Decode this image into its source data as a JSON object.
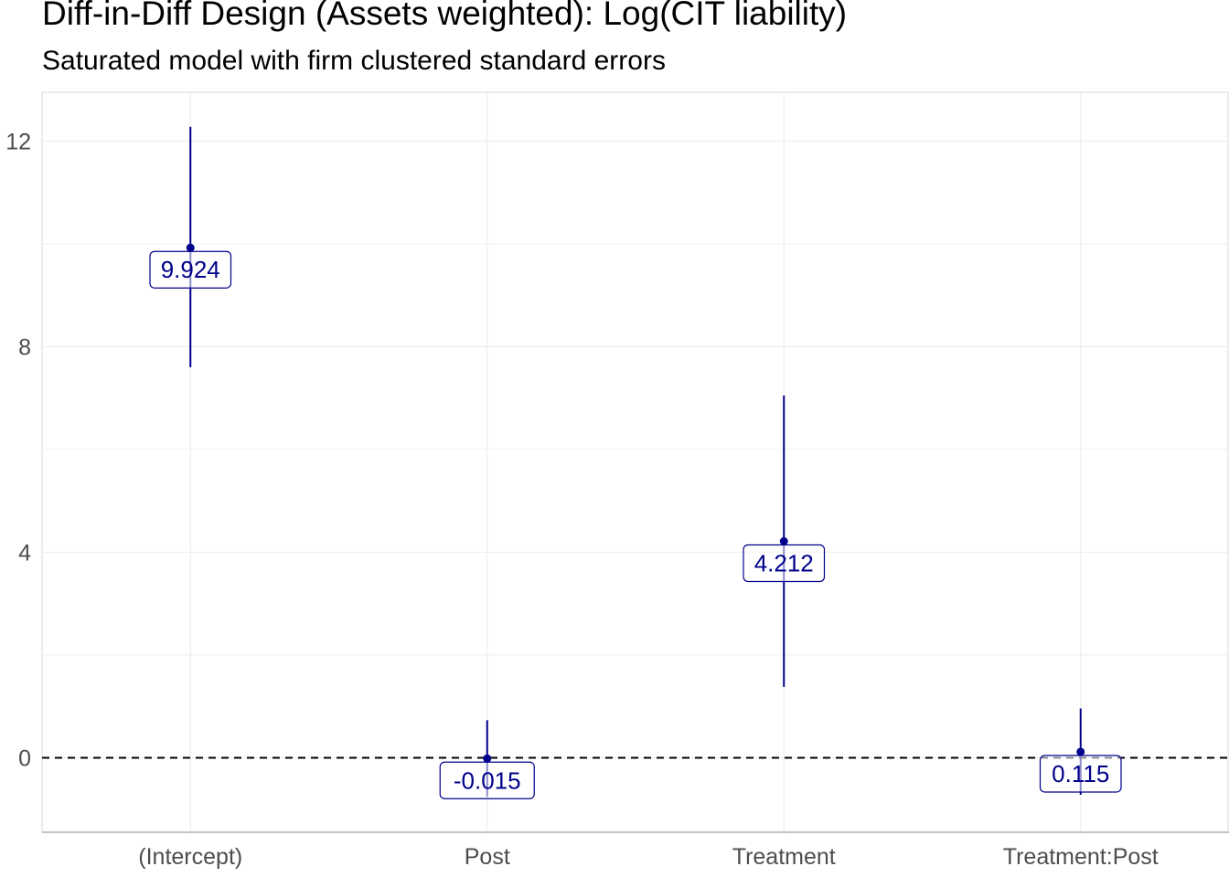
{
  "chart_data": {
    "type": "coefficient-plot",
    "title": "Diff-in-Diff Design (Assets weighted): Log(CIT liability)",
    "subtitle": "Saturated model with firm clustered standard errors",
    "xlabel": "",
    "ylabel": "",
    "ylim": [
      -1.45,
      12.95
    ],
    "y_ticks": [
      0,
      4,
      8,
      12
    ],
    "grid": true,
    "reference_line": 0,
    "colors": {
      "point": "#00008B",
      "grid": "#ebebeb",
      "reference": "#000000"
    },
    "categories": [
      "(Intercept)",
      "Post",
      "Treatment",
      "Treatment:Post"
    ],
    "estimates": [
      9.924,
      -0.015,
      4.212,
      0.115
    ],
    "estimate_labels": [
      "9.924",
      "-0.015",
      "4.212",
      "0.115"
    ],
    "ci_low": [
      7.6,
      -0.76,
      1.38,
      -0.72
    ],
    "ci_high": [
      12.28,
      0.73,
      7.05,
      0.96
    ]
  }
}
